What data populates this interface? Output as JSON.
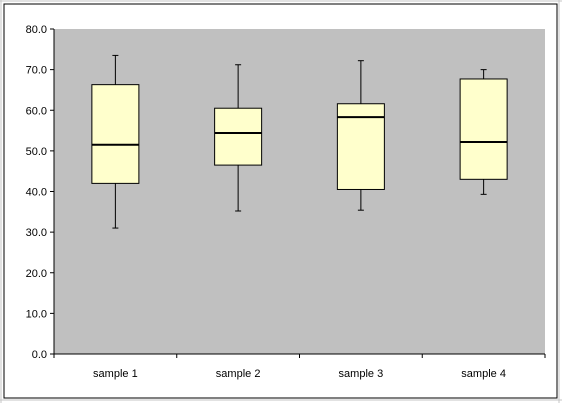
{
  "colors": {
    "plot_background": "#c0c0c0",
    "box_fill": "#ffffcc",
    "stroke": "#000000",
    "chart_area": "#ffffff",
    "sheet_grid": "#c6c6c6"
  },
  "chart_data": {
    "type": "boxplot",
    "title": "",
    "xlabel": "",
    "ylabel": "",
    "ylim": [
      0,
      80
    ],
    "ytick_step": 10,
    "ytick_labels": [
      "0.0",
      "10.0",
      "20.0",
      "30.0",
      "40.0",
      "50.0",
      "60.0",
      "70.0",
      "80.0"
    ],
    "grid": false,
    "legend": "none",
    "categories": [
      "sample 1",
      "sample 2",
      "sample 3",
      "sample 4"
    ],
    "boxes": [
      {
        "min": 31.0,
        "q1": 42.0,
        "median": 51.5,
        "q3": 66.3,
        "max": 73.5
      },
      {
        "min": 35.2,
        "q1": 46.5,
        "median": 54.4,
        "q3": 60.5,
        "max": 71.2
      },
      {
        "min": 35.4,
        "q1": 40.5,
        "median": 58.3,
        "q3": 61.6,
        "max": 72.2
      },
      {
        "min": 39.3,
        "q1": 43.0,
        "median": 52.2,
        "q3": 67.7,
        "max": 70.0
      }
    ]
  }
}
